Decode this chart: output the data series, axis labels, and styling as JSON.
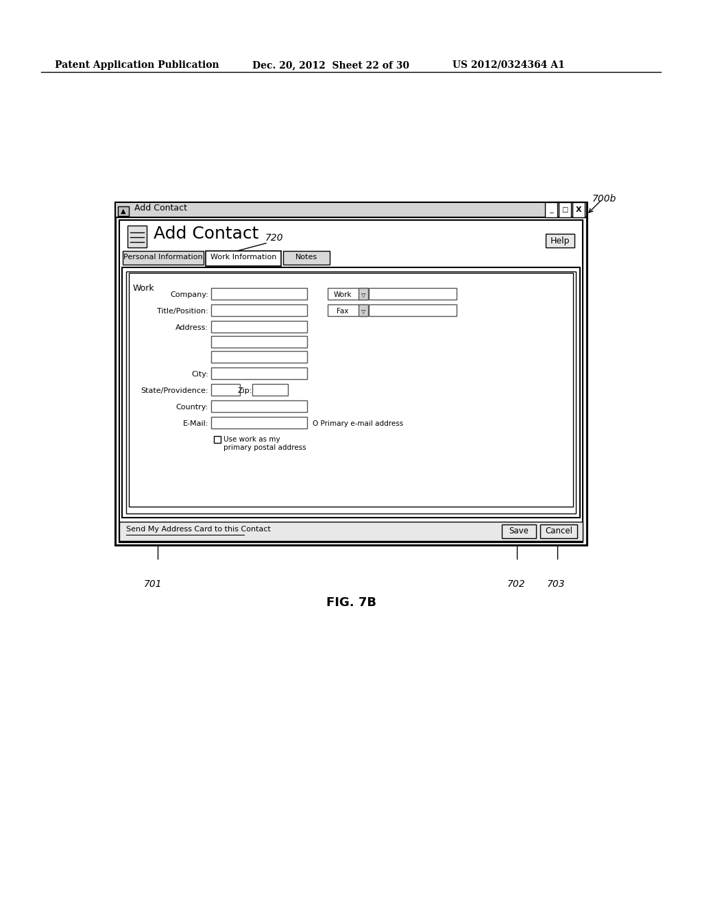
{
  "header_left": "Patent Application Publication",
  "header_mid": "Dec. 20, 2012  Sheet 22 of 30",
  "header_right": "US 2012/0324364 A1",
  "figure_label": "FIG. 7B",
  "label_700b": "700b",
  "label_720": "720",
  "label_701": "701",
  "label_702": "702",
  "label_703": "703",
  "window_title": "Add Contact",
  "dialog_title": "Add Contact",
  "help_btn": "Help",
  "tab1": "Personal Information",
  "tab2": "Work Information",
  "tab3": "Notes",
  "section_work": "Work",
  "phone_labels": [
    "Work",
    "Fax"
  ],
  "bottom_link": "Send My Address Card to this Contact",
  "save_btn": "Save",
  "cancel_btn": "Cancel",
  "checkbox_text": "Use work as my\nprimary postal address",
  "email_extra": "O Primary e-mail address",
  "zip_label": "Zip:",
  "bg_color": "#ffffff",
  "border_color": "#000000",
  "light_gray": "#e8e8e8"
}
